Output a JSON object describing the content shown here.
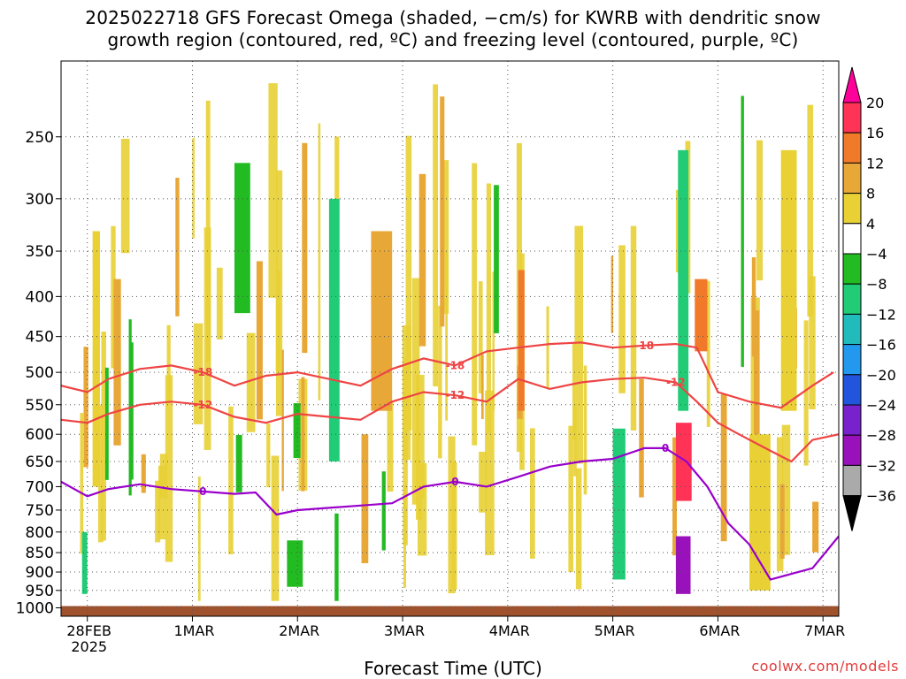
{
  "chart_data": {
    "type": "heatmap",
    "title_line1": "2025022718 GFS Forecast Omega (shaded, −cm/s) for KWRB with dendritic snow",
    "title_line2": "growth region (contoured, red, ºC) and freezing level (contoured, purple, ºC)",
    "xlabel": "Forecast Time (UTC)",
    "credit": "coolwx.com/models",
    "x_ticks": [
      "28FEB",
      "1MAR",
      "2MAR",
      "3MAR",
      "4MAR",
      "5MAR",
      "6MAR",
      "7MAR"
    ],
    "x_tick_year": "2025",
    "x_range_days": [
      -0.25,
      7.15
    ],
    "y_ticks": [
      250,
      300,
      350,
      400,
      450,
      500,
      550,
      600,
      650,
      700,
      750,
      800,
      850,
      900,
      950,
      1000
    ],
    "y_range_hpa": [
      200,
      1025
    ],
    "y_scale": "log-pressure, inverted",
    "grid": "dotted",
    "colorbar": {
      "labels": [
        "20",
        "16",
        "12",
        "8",
        "4",
        "−4",
        "−8",
        "−12",
        "−16",
        "−20",
        "−24",
        "−28",
        "−32",
        "−36"
      ],
      "colors": [
        "#ff3355",
        "#f07a2a",
        "#e8a838",
        "#e8d035",
        "#ffffff",
        "#22bb22",
        "#22cc77",
        "#22bbbb",
        "#2299ee",
        "#2255dd",
        "#7722cc",
        "#9911bb",
        "#aaaaaa"
      ],
      "top_arrow_color": "#ff0099",
      "bottom_arrow_color": "#000000"
    },
    "contours": [
      {
        "label": "-18",
        "color": "#ee4444",
        "x": [
          -0.25,
          0.0,
          0.2,
          0.5,
          0.8,
          1.1,
          1.4,
          1.7,
          2.0,
          2.3,
          2.6,
          2.9,
          3.2,
          3.5,
          3.8,
          4.1,
          4.4,
          4.7,
          5.0,
          5.3,
          5.6,
          5.8,
          6.0,
          6.3,
          6.6,
          6.9,
          7.1
        ],
        "p": [
          520,
          530,
          510,
          495,
          490,
          500,
          520,
          505,
          500,
          510,
          520,
          495,
          480,
          490,
          470,
          465,
          460,
          458,
          465,
          462,
          460,
          465,
          530,
          545,
          555,
          520,
          500
        ]
      },
      {
        "label": "-12",
        "color": "#ee4444",
        "x": [
          -0.25,
          0.0,
          0.2,
          0.5,
          0.8,
          1.1,
          1.4,
          1.7,
          2.0,
          2.3,
          2.6,
          2.9,
          3.2,
          3.5,
          3.8,
          4.1,
          4.4,
          4.7,
          5.0,
          5.3,
          5.6,
          5.8,
          6.0,
          6.2,
          6.5,
          6.7,
          6.9,
          7.15
        ],
        "p": [
          575,
          580,
          565,
          550,
          545,
          550,
          570,
          580,
          565,
          570,
          575,
          545,
          530,
          535,
          545,
          510,
          525,
          515,
          510,
          508,
          515,
          545,
          580,
          600,
          630,
          650,
          610,
          600
        ]
      },
      {
        "label": "0",
        "color": "#9900cc",
        "x": [
          -0.25,
          0.0,
          0.2,
          0.5,
          0.8,
          1.1,
          1.4,
          1.6,
          1.8,
          2.0,
          2.3,
          2.6,
          2.9,
          3.2,
          3.5,
          3.8,
          4.1,
          4.4,
          4.7,
          5.0,
          5.3,
          5.5,
          5.7,
          5.9,
          6.1,
          6.3,
          6.5,
          6.7,
          6.9,
          7.15
        ],
        "p": [
          690,
          720,
          705,
          695,
          705,
          710,
          715,
          712,
          760,
          750,
          745,
          740,
          735,
          700,
          690,
          700,
          680,
          660,
          650,
          645,
          625,
          625,
          650,
          700,
          780,
          830,
          920,
          905,
          890,
          810
        ]
      }
    ],
    "omega_cells": [
      {
        "x0": 0.05,
        "x1": 0.12,
        "p0": 330,
        "p1": 700,
        "val": 6
      },
      {
        "x0": 0.25,
        "x1": 0.32,
        "p0": 380,
        "p1": 620,
        "val": 10
      },
      {
        "x0": -0.05,
        "x1": 0.0,
        "p0": 800,
        "p1": 960,
        "val": -10
      },
      {
        "x0": 1.4,
        "x1": 1.55,
        "p0": 270,
        "p1": 420,
        "val": -8
      },
      {
        "x0": 1.9,
        "x1": 2.05,
        "p0": 820,
        "p1": 940,
        "val": -8
      },
      {
        "x0": 2.3,
        "x1": 2.4,
        "p0": 300,
        "p1": 650,
        "val": -10
      },
      {
        "x0": 2.7,
        "x1": 2.9,
        "p0": 330,
        "p1": 560,
        "val": 10
      },
      {
        "x0": 4.1,
        "x1": 4.16,
        "p0": 370,
        "p1": 560,
        "val": 16
      },
      {
        "x0": 5.0,
        "x1": 5.12,
        "p0": 590,
        "p1": 920,
        "val": -12
      },
      {
        "x0": 5.62,
        "x1": 5.72,
        "p0": 260,
        "p1": 560,
        "val": -12
      },
      {
        "x0": 5.6,
        "x1": 5.75,
        "p0": 580,
        "p1": 730,
        "val": 20
      },
      {
        "x0": 5.6,
        "x1": 5.74,
        "p0": 810,
        "p1": 960,
        "val": -30
      },
      {
        "x0": 5.78,
        "x1": 5.9,
        "p0": 380,
        "p1": 470,
        "val": 14
      },
      {
        "x0": 6.3,
        "x1": 6.5,
        "p0": 600,
        "p1": 950,
        "val": 6
      },
      {
        "x0": 6.6,
        "x1": 6.75,
        "p0": 260,
        "p1": 560,
        "val": 8
      }
    ]
  }
}
